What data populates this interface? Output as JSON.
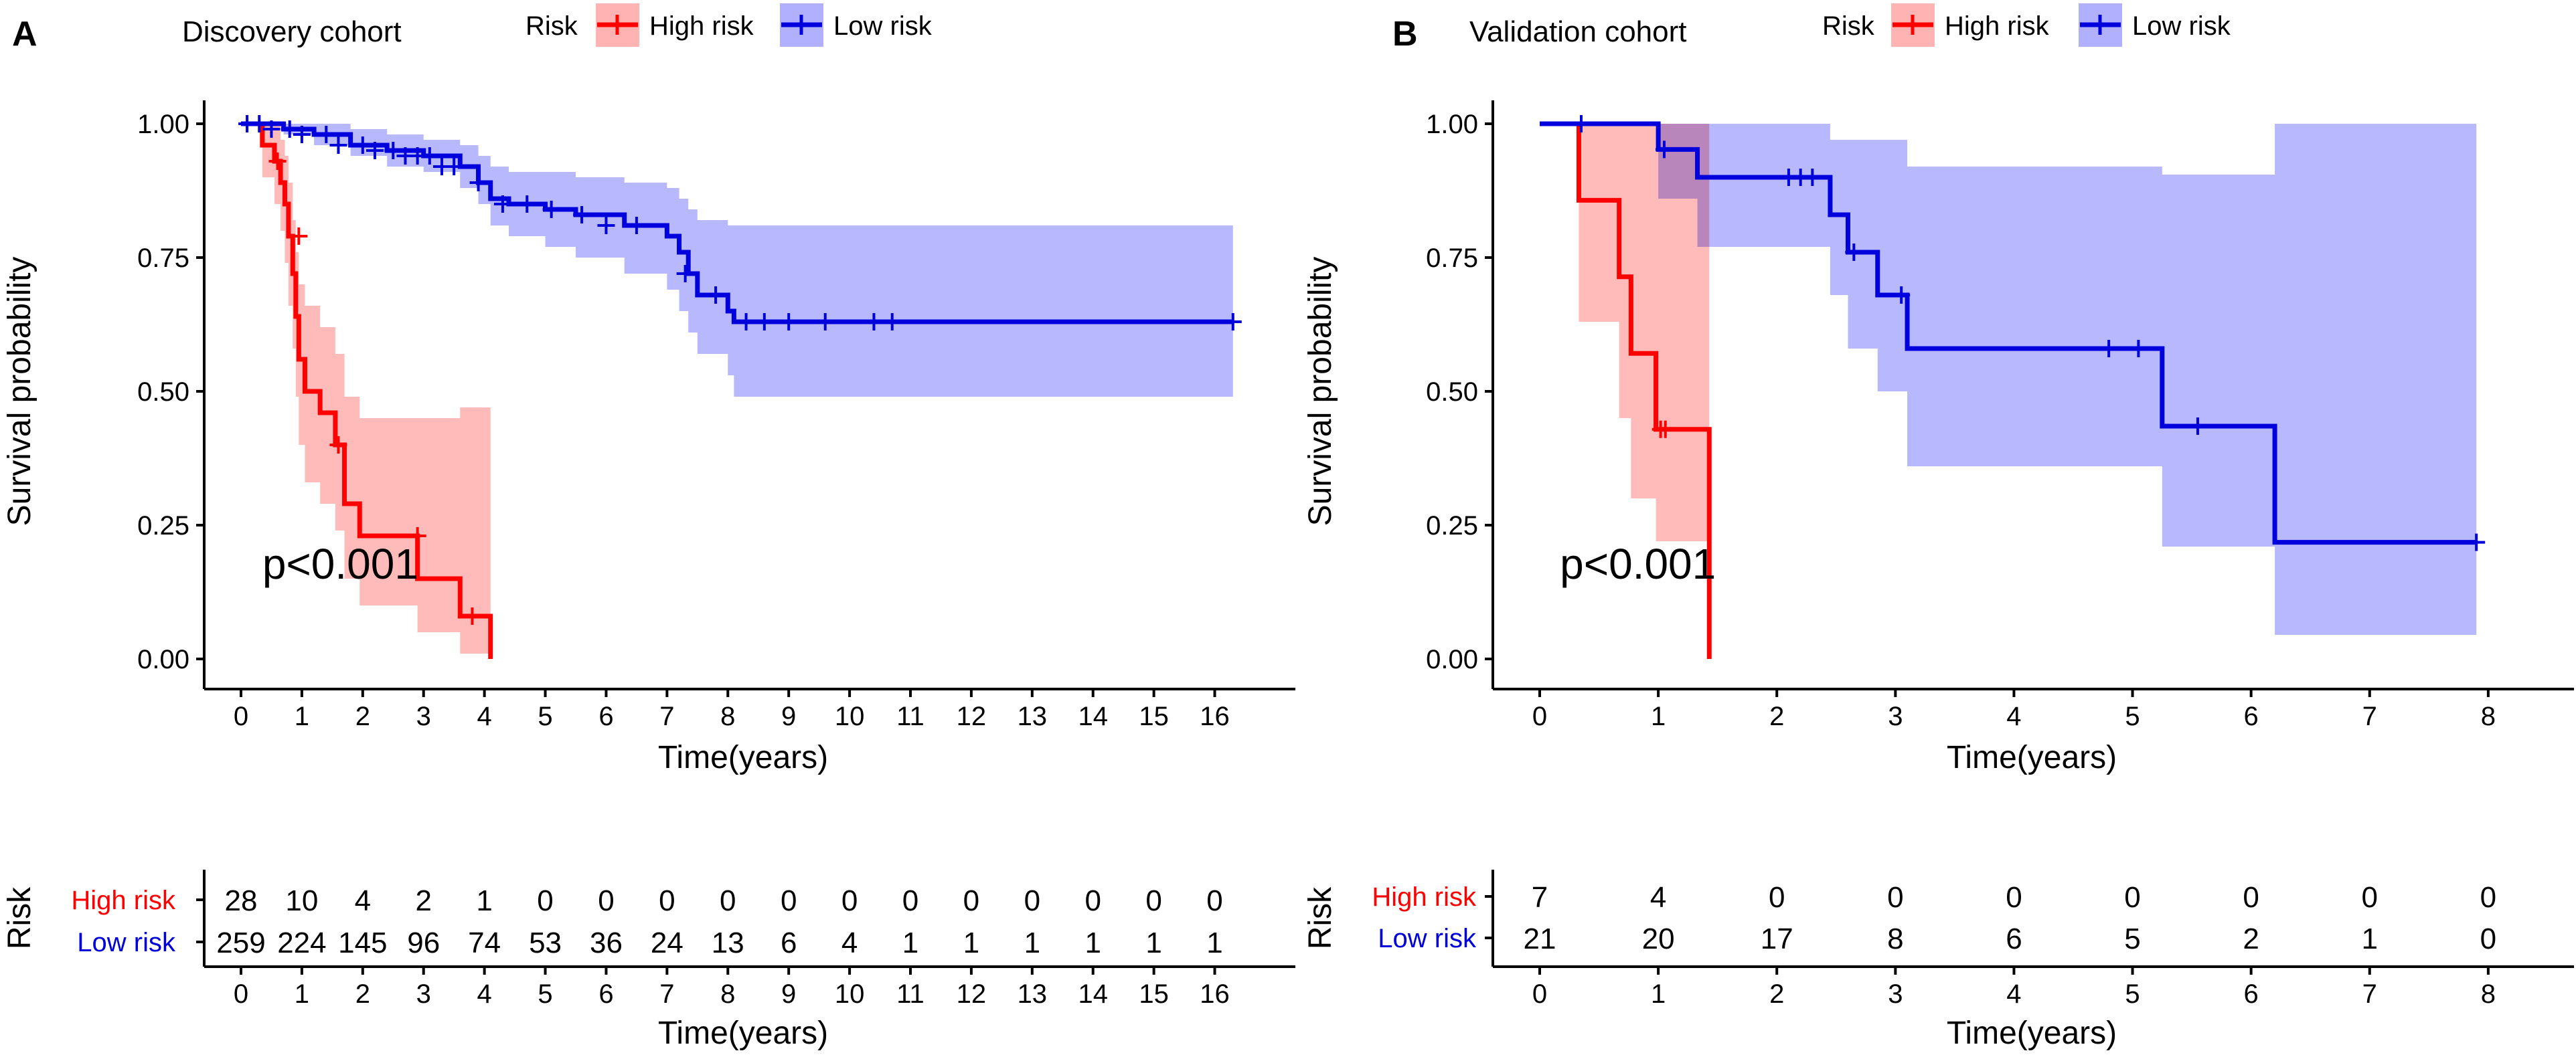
{
  "colors": {
    "high": "#ff0000",
    "low": "#0000dd",
    "high_fill": "#ffb3b3",
    "low_fill": "#b0b0ff",
    "axis": "#000000"
  },
  "chart_data": [
    {
      "type": "line",
      "panel": "A",
      "title": "Discovery cohort",
      "legend_title": "Risk",
      "legend_location": "top",
      "xlabel": "Time(years)",
      "ylabel": "Survival probability",
      "xlim": [
        0,
        16.5
      ],
      "ylim": [
        0,
        1
      ],
      "xticks": [
        "0",
        "1",
        "2",
        "3",
        "4",
        "5",
        "6",
        "7",
        "8",
        "9",
        "10",
        "11",
        "12",
        "13",
        "14",
        "15",
        "16"
      ],
      "yticks": [
        "0.00",
        "0.25",
        "0.50",
        "0.75",
        "1.00"
      ],
      "pvalue": "p<0.001",
      "series": [
        {
          "name": "High risk",
          "color_key": "high",
          "x": [
            0,
            0.35,
            0.55,
            0.65,
            0.72,
            0.78,
            0.85,
            0.9,
            0.95,
            1.05,
            1.3,
            1.55,
            1.7,
            1.95,
            2.9,
            3.6,
            4.1
          ],
          "y": [
            1.0,
            0.96,
            0.93,
            0.89,
            0.85,
            0.79,
            0.72,
            0.64,
            0.56,
            0.5,
            0.46,
            0.4,
            0.29,
            0.23,
            0.15,
            0.08,
            0.0
          ],
          "ci_lower": [
            1.0,
            0.9,
            0.85,
            0.8,
            0.74,
            0.66,
            0.58,
            0.49,
            0.4,
            0.33,
            0.29,
            0.24,
            0.15,
            0.1,
            0.05,
            0.01,
            0.0
          ],
          "ci_upper": [
            1.0,
            1.0,
            1.0,
            0.97,
            0.94,
            0.89,
            0.82,
            0.76,
            0.7,
            0.66,
            0.62,
            0.57,
            0.49,
            0.45,
            0.45,
            0.47,
            0.47
          ],
          "censor_x": [
            0.6,
            0.95,
            1.6,
            2.9,
            3.8
          ],
          "censor_y": [
            0.93,
            0.79,
            0.4,
            0.23,
            0.08
          ]
        },
        {
          "name": "Low risk",
          "color_key": "low",
          "x": [
            0,
            0.7,
            1.2,
            1.8,
            2.4,
            3.0,
            3.6,
            3.9,
            4.1,
            4.4,
            5.0,
            5.5,
            6.3,
            7.0,
            7.2,
            7.35,
            7.5,
            8.0,
            8.1,
            16.3
          ],
          "y": [
            1.0,
            0.99,
            0.98,
            0.96,
            0.95,
            0.94,
            0.92,
            0.89,
            0.86,
            0.85,
            0.84,
            0.83,
            0.81,
            0.79,
            0.76,
            0.72,
            0.68,
            0.65,
            0.63,
            0.63
          ],
          "ci_lower": [
            1.0,
            0.98,
            0.96,
            0.94,
            0.92,
            0.91,
            0.88,
            0.85,
            0.81,
            0.79,
            0.77,
            0.75,
            0.72,
            0.69,
            0.65,
            0.61,
            0.57,
            0.53,
            0.49,
            0.49
          ],
          "ci_upper": [
            1.0,
            1.0,
            1.0,
            0.99,
            0.98,
            0.97,
            0.96,
            0.94,
            0.92,
            0.91,
            0.91,
            0.9,
            0.89,
            0.88,
            0.86,
            0.84,
            0.82,
            0.81,
            0.81,
            0.81
          ],
          "censor_x": [
            0.1,
            0.3,
            0.5,
            0.8,
            1.0,
            1.4,
            1.6,
            2.0,
            2.2,
            2.5,
            2.7,
            2.9,
            3.1,
            3.3,
            3.5,
            3.9,
            4.3,
            4.7,
            5.1,
            5.6,
            6.0,
            6.5,
            7.3,
            7.8,
            8.3,
            8.6,
            9.0,
            9.6,
            10.4,
            10.7,
            16.3
          ],
          "censor_y": [
            1.0,
            1.0,
            0.99,
            0.99,
            0.98,
            0.98,
            0.96,
            0.96,
            0.95,
            0.95,
            0.94,
            0.94,
            0.94,
            0.92,
            0.92,
            0.89,
            0.85,
            0.85,
            0.84,
            0.83,
            0.81,
            0.81,
            0.72,
            0.68,
            0.63,
            0.63,
            0.63,
            0.63,
            0.63,
            0.63,
            0.63
          ]
        }
      ],
      "risk_table": {
        "title": "Risk",
        "xlabel": "Time(years)",
        "times": [
          0,
          1,
          2,
          3,
          4,
          5,
          6,
          7,
          8,
          9,
          10,
          11,
          12,
          13,
          14,
          15,
          16
        ],
        "rows": [
          {
            "label": "High risk",
            "color_key": "high",
            "counts": [
              "28",
              "10",
              "4",
              "2",
              "1",
              "0",
              "0",
              "0",
              "0",
              "0",
              "0",
              "0",
              "0",
              "0",
              "0",
              "0",
              "0"
            ]
          },
          {
            "label": "Low risk",
            "color_key": "low",
            "counts": [
              "259",
              "224",
              "145",
              "96",
              "74",
              "53",
              "36",
              "24",
              "13",
              "6",
              "4",
              "1",
              "1",
              "1",
              "1",
              "1",
              "1"
            ]
          }
        ]
      }
    },
    {
      "type": "line",
      "panel": "B",
      "title": "Validation cohort",
      "legend_title": "Risk",
      "legend_location": "top",
      "xlabel": "Time(years)",
      "ylabel": "Survival probability",
      "xlim": [
        0,
        8.3
      ],
      "ylim": [
        0,
        1
      ],
      "xticks": [
        "0",
        "1",
        "2",
        "3",
        "4",
        "5",
        "6",
        "7",
        "8"
      ],
      "yticks": [
        "0.00",
        "0.25",
        "0.50",
        "0.75",
        "1.00"
      ],
      "pvalue": "p<0.001",
      "series": [
        {
          "name": "High risk",
          "color_key": "high",
          "x": [
            0,
            0.33,
            0.67,
            0.77,
            0.98,
            1.43
          ],
          "y": [
            1.0,
            0.857,
            0.714,
            0.571,
            0.429,
            0.0
          ],
          "ci_lower": [
            1.0,
            0.63,
            0.45,
            0.3,
            0.22,
            0.0
          ],
          "ci_upper": [
            1.0,
            1.0,
            1.0,
            1.0,
            1.0,
            1.0
          ],
          "censor_x": [
            1.02,
            1.06
          ],
          "censor_y": [
            0.429,
            0.429
          ]
        },
        {
          "name": "Low risk",
          "color_key": "low",
          "x": [
            0,
            1.0,
            1.33,
            2.45,
            2.6,
            2.85,
            3.1,
            5.25,
            6.2,
            7.9
          ],
          "y": [
            1.0,
            0.952,
            0.9,
            0.83,
            0.76,
            0.68,
            0.58,
            0.435,
            0.218,
            0.218
          ],
          "ci_lower": [
            1.0,
            0.86,
            0.77,
            0.68,
            0.58,
            0.5,
            0.36,
            0.21,
            0.045,
            0.045
          ],
          "ci_upper": [
            1.0,
            1.0,
            1.0,
            0.97,
            0.97,
            0.97,
            0.92,
            0.905,
            1.0,
            1.0
          ],
          "censor_x": [
            0.35,
            1.05,
            2.1,
            2.2,
            2.3,
            2.65,
            3.05,
            4.8,
            5.05,
            5.55,
            7.9
          ],
          "censor_y": [
            1.0,
            0.952,
            0.9,
            0.9,
            0.9,
            0.76,
            0.68,
            0.58,
            0.58,
            0.435,
            0.218
          ]
        }
      ],
      "risk_table": {
        "title": "Risk",
        "xlabel": "Time(years)",
        "times": [
          0,
          1,
          2,
          3,
          4,
          5,
          6,
          7,
          8
        ],
        "rows": [
          {
            "label": "High risk",
            "color_key": "high",
            "counts": [
              "7",
              "4",
              "0",
              "0",
              "0",
              "0",
              "0",
              "0",
              "0"
            ]
          },
          {
            "label": "Low risk",
            "color_key": "low",
            "counts": [
              "21",
              "20",
              "17",
              "8",
              "6",
              "5",
              "2",
              "1",
              "0"
            ]
          }
        ]
      }
    }
  ]
}
